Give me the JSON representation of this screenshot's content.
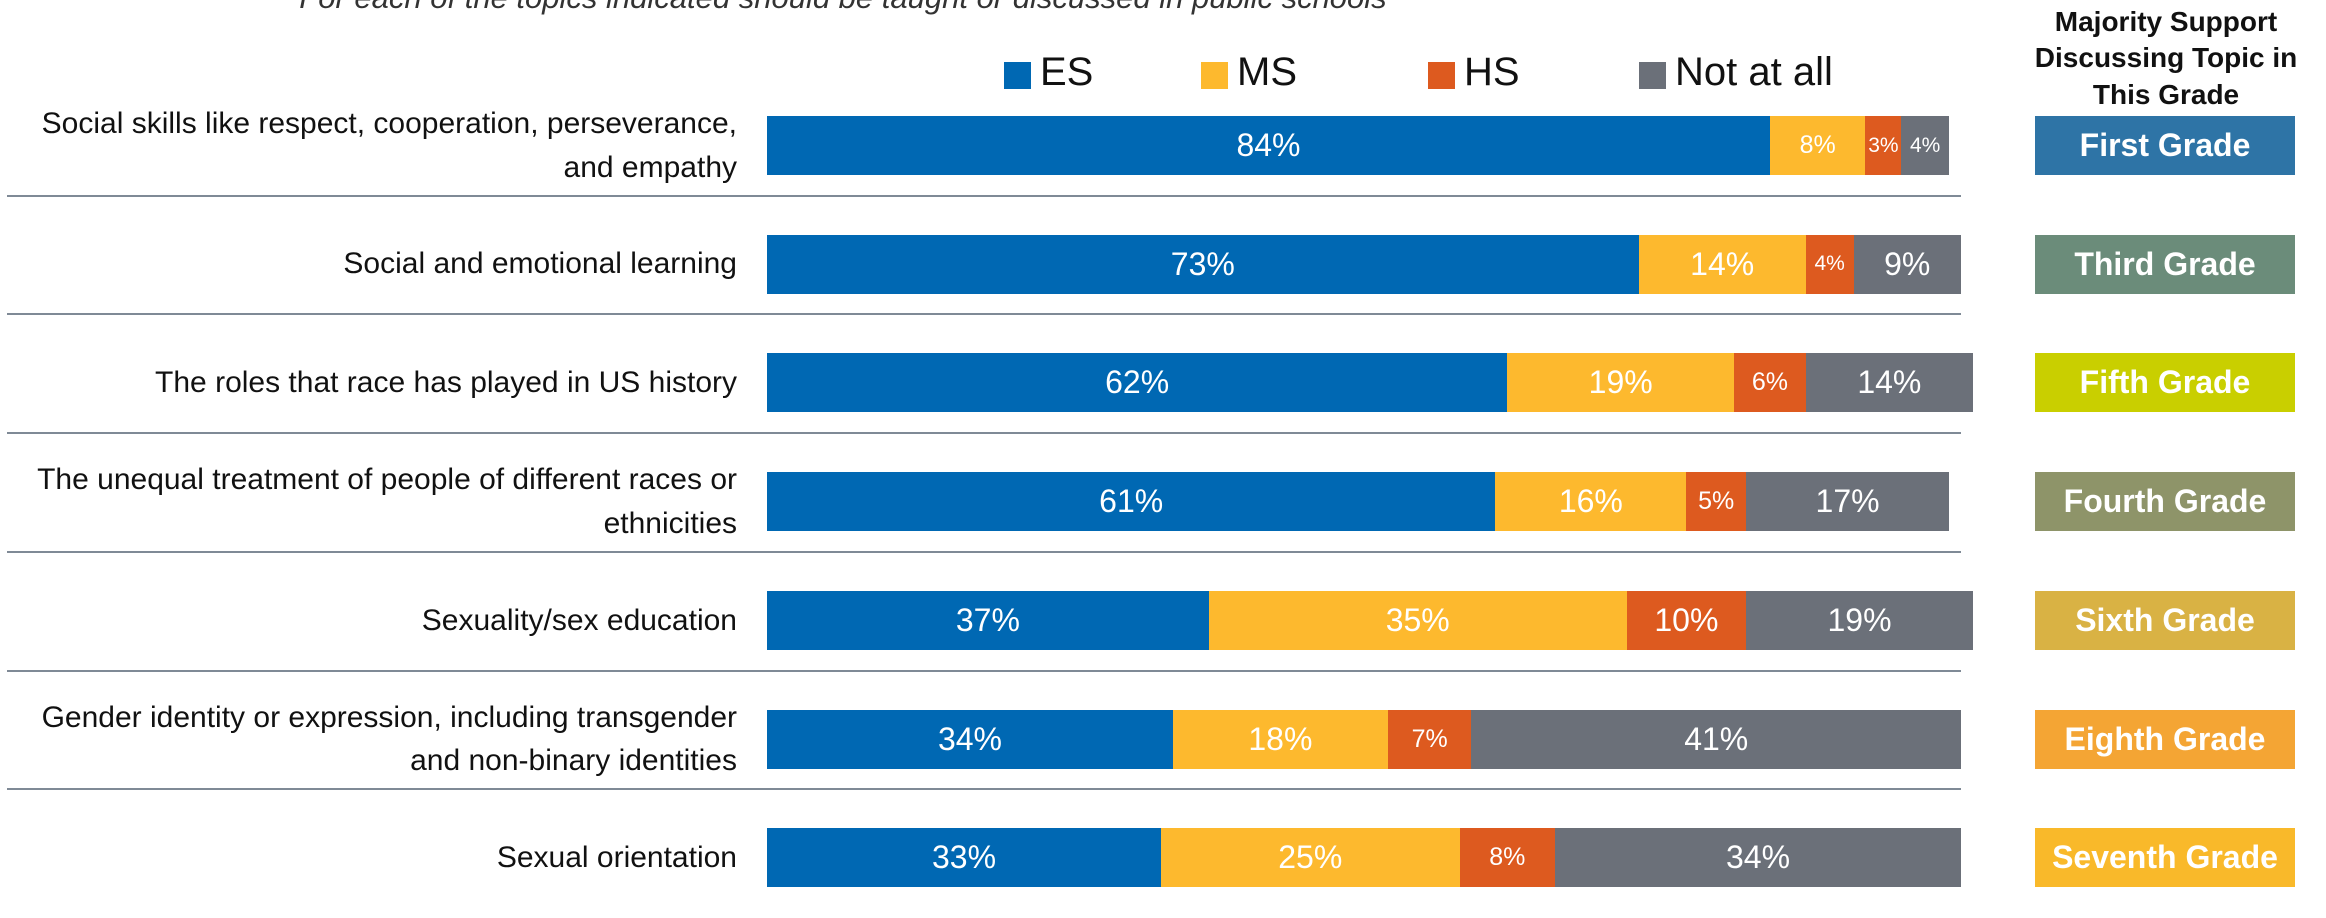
{
  "chart_data": {
    "type": "bar",
    "orientation": "horizontal",
    "stacked": true,
    "subtitle": "For each of the topics indicated should be taught or discussed in public schools",
    "categories": [
      "Social skills like respect, cooperation, perseverance, and empathy",
      "Social and emotional learning",
      "The roles that race has played in US history",
      "The unequal treatment of people of different races or ethnicities",
      "Sexuality/sex education",
      "Gender identity or expression, including transgender and non-binary identities",
      "Sexual orientation"
    ],
    "xlim": [
      0,
      100
    ],
    "series": [
      {
        "name": "ES",
        "color": "#0068b3",
        "values": [
          84,
          73,
          62,
          61,
          37,
          34,
          33
        ],
        "value_labels": [
          "84%",
          "73%",
          "62%",
          "61%",
          "37%",
          "34%",
          "33%"
        ]
      },
      {
        "name": "MS",
        "color": "#fdb92e",
        "values": [
          8,
          14,
          19,
          16,
          35,
          18,
          25
        ],
        "value_labels": [
          "8%",
          "14%",
          "19%",
          "16%",
          "35%",
          "18%",
          "25%"
        ]
      },
      {
        "name": "HS",
        "color": "#dd5a1f",
        "values": [
          3,
          4,
          6,
          5,
          10,
          7,
          8
        ],
        "value_labels": [
          "3%",
          "4%",
          "6%",
          "5%",
          "10%",
          "7%",
          "8%"
        ]
      },
      {
        "name": "Not at all",
        "color": "#6b7079",
        "values": [
          4,
          9,
          14,
          17,
          19,
          41,
          34
        ],
        "value_labels": [
          "4%",
          "9%",
          "14%",
          "17%",
          "19%",
          "41%",
          "34%"
        ]
      }
    ],
    "grade_column": {
      "title": "Majority Support Discussing Topic in This Grade",
      "labels": [
        "First Grade",
        "Third Grade",
        "Fifth Grade",
        "Fourth Grade",
        "Sixth Grade",
        "Eighth Grade",
        "Seventh Grade"
      ],
      "colors": [
        "#2e74a6",
        "#6b8c7a",
        "#c9cf00",
        "#8e9469",
        "#d9b244",
        "#f4a534",
        "#f9b92a"
      ]
    }
  }
}
